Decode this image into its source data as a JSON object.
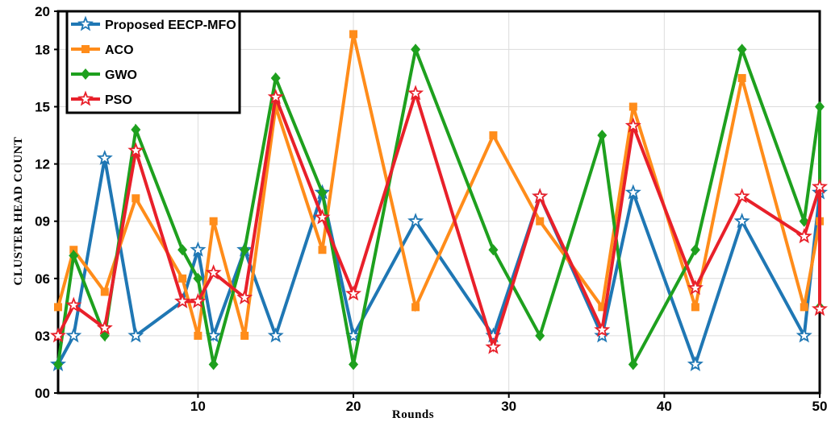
{
  "chart_data": {
    "type": "line",
    "xlabel": "Rounds",
    "ylabel": "CLUSTER HEAD COUNT",
    "xlim": [
      1,
      50
    ],
    "ylim": [
      0,
      20
    ],
    "x_ticks": [
      10,
      20,
      30,
      40,
      50
    ],
    "y_ticks": [
      {
        "value": 0,
        "label": "00"
      },
      {
        "value": 3,
        "label": "03"
      },
      {
        "value": 6,
        "label": "06"
      },
      {
        "value": 9,
        "label": "09"
      },
      {
        "value": 12,
        "label": "12"
      },
      {
        "value": 15,
        "label": "15"
      },
      {
        "value": 18,
        "label": "18"
      },
      {
        "value": 20,
        "label": "20"
      }
    ],
    "grid": true,
    "legend_position": "top-left",
    "series": [
      {
        "name": "Proposed EECP-MFO",
        "color": "#1f77b4",
        "marker": "star-open",
        "points": [
          [
            1,
            1.5
          ],
          [
            2,
            3
          ],
          [
            4,
            12.3
          ],
          [
            6,
            3
          ],
          [
            9,
            4.8
          ],
          [
            10,
            7.5
          ],
          [
            11,
            3
          ],
          [
            13,
            7.5
          ],
          [
            15,
            3
          ],
          [
            18,
            10.5
          ],
          [
            20,
            3
          ],
          [
            24,
            9
          ],
          [
            29,
            3
          ],
          [
            32,
            10.3
          ],
          [
            36,
            3
          ],
          [
            38,
            10.5
          ],
          [
            42,
            1.5
          ],
          [
            45,
            9
          ],
          [
            49,
            3
          ],
          [
            50,
            10.5
          ]
        ]
      },
      {
        "name": "ACO",
        "color": "#ff8c1a",
        "marker": "square",
        "points": [
          [
            1,
            4.5
          ],
          [
            2,
            7.5
          ],
          [
            4,
            5.3
          ],
          [
            6,
            10.2
          ],
          [
            9,
            6
          ],
          [
            10,
            3
          ],
          [
            11,
            9
          ],
          [
            13,
            3
          ],
          [
            15,
            15
          ],
          [
            18,
            7.5
          ],
          [
            20,
            18.8
          ],
          [
            24,
            4.5
          ],
          [
            29,
            13.5
          ],
          [
            32,
            9
          ],
          [
            36,
            4.5
          ],
          [
            38,
            15
          ],
          [
            42,
            4.5
          ],
          [
            45,
            16.5
          ],
          [
            49,
            4.5
          ],
          [
            50,
            9
          ]
        ]
      },
      {
        "name": "GWO",
        "color": "#1ea01e",
        "marker": "diamond",
        "points": [
          [
            1,
            1.5
          ],
          [
            2,
            7.2
          ],
          [
            4,
            3
          ],
          [
            6,
            13.8
          ],
          [
            9,
            7.5
          ],
          [
            10,
            6
          ],
          [
            11,
            1.5
          ],
          [
            13,
            7.5
          ],
          [
            15,
            16.5
          ],
          [
            18,
            10.5
          ],
          [
            20,
            1.5
          ],
          [
            24,
            18
          ],
          [
            29,
            7.5
          ],
          [
            32,
            3
          ],
          [
            36,
            13.5
          ],
          [
            38,
            1.5
          ],
          [
            42,
            7.5
          ],
          [
            45,
            18
          ],
          [
            49,
            9
          ],
          [
            50,
            15
          ],
          [
            50,
            4.5
          ]
        ]
      },
      {
        "name": "PSO",
        "color": "#e8202a",
        "marker": "star-open",
        "points": [
          [
            1,
            3
          ],
          [
            2,
            4.6
          ],
          [
            4,
            3.4
          ],
          [
            6,
            12.7
          ],
          [
            9,
            4.8
          ],
          [
            10,
            4.8
          ],
          [
            11,
            6.3
          ],
          [
            13,
            5
          ],
          [
            15,
            15.5
          ],
          [
            18,
            9.2
          ],
          [
            20,
            5.2
          ],
          [
            24,
            15.7
          ],
          [
            29,
            2.4
          ],
          [
            32,
            10.3
          ],
          [
            36,
            3.3
          ],
          [
            38,
            14
          ],
          [
            42,
            5.5
          ],
          [
            45,
            10.3
          ],
          [
            49,
            8.2
          ],
          [
            50,
            10.8
          ],
          [
            50,
            4.4
          ]
        ]
      }
    ]
  }
}
